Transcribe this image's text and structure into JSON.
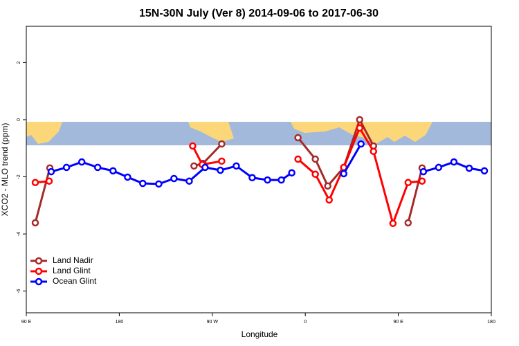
{
  "chart_data": {
    "type": "line",
    "title": "15N-30N July (Ver 8)   2014-09-06 to 2017-06-30",
    "x_label": "Longitude",
    "y_label": "XCO2 - MLO trend (ppm)",
    "xlim": [
      90,
      540
    ],
    "ylim": [
      -6.76,
      3.27
    ],
    "xticks": [
      {
        "value": 90,
        "label": "90 E"
      },
      180,
      {
        "value": 270,
        "label": "90 W"
      },
      {
        "value": 360,
        "label": "0"
      },
      {
        "value": 450,
        "label": "90 E"
      },
      {
        "value": 540,
        "label": "180"
      }
    ],
    "yticks": [
      -6,
      -4,
      -2,
      0,
      2
    ],
    "legend": "bottomleft",
    "series": [
      {
        "name": "Land Nadir",
        "color": "#a52a2a",
        "x": [
          98.7,
          112.8,
          null,
          252.3,
          261.0,
          279.1,
          null,
          352.9,
          369.7,
          381.7,
          397.2,
          412.6,
          426.0,
          null,
          459.5,
          473.0
        ],
        "values": [
          -3.61,
          -1.69,
          null,
          -1.62,
          -1.53,
          -0.85,
          null,
          -0.63,
          -1.38,
          -2.32,
          -1.67,
          0.0,
          -0.92,
          null,
          -3.61,
          -1.69
        ]
      },
      {
        "name": "Land Glint",
        "color": "#ff0000",
        "x": [
          98.7,
          112.1,
          null,
          251.0,
          260.3,
          279.1,
          null,
          352.9,
          369.7,
          383.1,
          397.2,
          412.6,
          426.0,
          444.8,
          459.5,
          473.0
        ],
        "values": [
          -2.2,
          -2.15,
          null,
          -0.92,
          -1.57,
          -1.45,
          null,
          -1.38,
          -1.91,
          -2.81,
          -1.67,
          -0.29,
          -1.11,
          -3.63,
          -2.2,
          -2.15
        ]
      },
      {
        "name": "Ocean Glint",
        "color": "#0000ff",
        "x": [
          114.1,
          128.9,
          143.7,
          159.1,
          173.9,
          188.0,
          202.7,
          218.2,
          232.9,
          247.7,
          263.0,
          277.8,
          293.2,
          308.6,
          323.4,
          336.8,
          346.9,
          null,
          397.2,
          413.9,
          null,
          474.3,
          489.0,
          503.8,
          518.6,
          533.3
        ],
        "values": [
          -1.82,
          -1.67,
          -1.48,
          -1.67,
          -1.79,
          -2.01,
          -2.23,
          -2.25,
          -2.06,
          -2.15,
          -1.67,
          -1.77,
          -1.62,
          -2.03,
          -2.11,
          -2.11,
          -1.86,
          null,
          -1.89,
          -0.85,
          null,
          -1.82,
          -1.67,
          -1.48,
          -1.7,
          -1.79
        ]
      }
    ]
  }
}
